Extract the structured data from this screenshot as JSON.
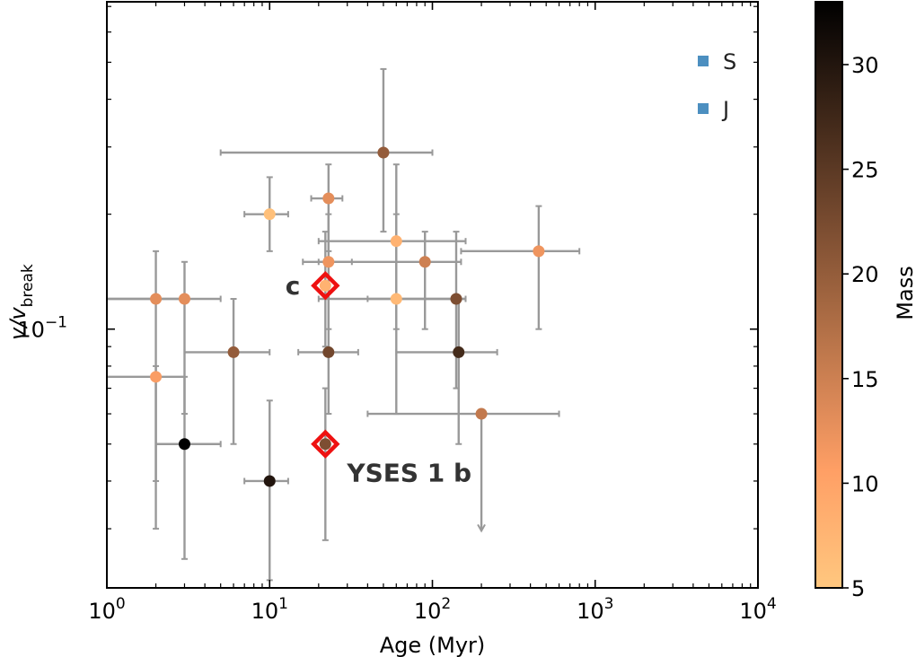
{
  "chart_data": {
    "type": "scatter",
    "xlabel": "Age (Myr)",
    "ylabel_main": "v/v",
    "ylabel_sub": "break",
    "xscale": "log",
    "yscale": "log",
    "xlim": [
      1,
      10000
    ],
    "ylim": [
      0.021,
      0.72
    ],
    "x_ticks": [
      {
        "value": 1,
        "base": "10",
        "exp": "0"
      },
      {
        "value": 10,
        "base": "10",
        "exp": "1"
      },
      {
        "value": 100,
        "base": "10",
        "exp": "2"
      },
      {
        "value": 1000,
        "base": "10",
        "exp": "3"
      },
      {
        "value": 10000,
        "base": "10",
        "exp": "4"
      }
    ],
    "y_ticks": [
      {
        "value": 0.1,
        "base": "10",
        "exp": "−1"
      }
    ],
    "legend": [
      {
        "label": "S",
        "color": "#4c8fc0"
      },
      {
        "label": "J",
        "color": "#4c8fc0"
      }
    ],
    "legend_position": "top-right",
    "colorbar": {
      "label": "Mass",
      "min": 5,
      "max": 33,
      "ticks": [
        5,
        10,
        15,
        20,
        25,
        30
      ],
      "colormap": "copper_r"
    },
    "errorbar_color": "#999999",
    "points": [
      {
        "x": 2,
        "y": 0.12,
        "xerr": [
          1,
          3
        ],
        "yerr": [
          0.04,
          0.16
        ],
        "mass": 13
      },
      {
        "x": 2,
        "y": 0.075,
        "xerr": [
          1,
          3
        ],
        "yerr": [
          0.03,
          0.08
        ],
        "mass": 11
      },
      {
        "x": 3,
        "y": 0.12,
        "xerr": [
          1,
          5
        ],
        "yerr": [
          0.06,
          0.15
        ],
        "mass": 13
      },
      {
        "x": 3,
        "y": 0.05,
        "xerr": [
          2,
          5
        ],
        "yerr": [
          0.025,
          0.075
        ],
        "mass": 33
      },
      {
        "x": 6,
        "y": 0.087,
        "xerr": [
          3,
          10
        ],
        "yerr": [
          0.05,
          0.12
        ],
        "mass": 20
      },
      {
        "x": 10,
        "y": 0.2,
        "xerr": [
          7,
          13
        ],
        "yerr": [
          0.16,
          0.25
        ],
        "mass": 6
      },
      {
        "x": 10,
        "y": 0.04,
        "xerr": [
          7,
          13
        ],
        "yerr": [
          0.022,
          0.065
        ],
        "mass": 30
      },
      {
        "x": 23,
        "y": 0.22,
        "xerr": [
          18,
          28
        ],
        "yerr": [
          0.16,
          0.27
        ],
        "mass": 13
      },
      {
        "x": 23,
        "y": 0.15,
        "xerr": [
          16,
          32
        ],
        "yerr": [
          0.1,
          0.2
        ],
        "mass": 12
      },
      {
        "x": 23,
        "y": 0.087,
        "xerr": [
          15,
          35
        ],
        "yerr": [
          0.06,
          0.12
        ],
        "mass": 23
      },
      {
        "x": 50,
        "y": 0.29,
        "xerr": [
          5,
          100
        ],
        "yerr": [
          0.18,
          0.48
        ],
        "mass": 20
      },
      {
        "x": 60,
        "y": 0.17,
        "xerr": [
          20,
          160
        ],
        "yerr": [
          0.1,
          0.27
        ],
        "mass": 8
      },
      {
        "x": 60,
        "y": 0.12,
        "xerr": [
          20,
          160
        ],
        "yerr": [
          0.06,
          0.2
        ],
        "mass": 7
      },
      {
        "x": 90,
        "y": 0.15,
        "xerr": [
          20,
          150
        ],
        "yerr": [
          0.1,
          0.18
        ],
        "mass": 15
      },
      {
        "x": 140,
        "y": 0.12,
        "xerr": [
          40,
          160
        ],
        "yerr": [
          0.07,
          0.18
        ],
        "mass": 22
      },
      {
        "x": 145,
        "y": 0.087,
        "xerr": [
          60,
          250
        ],
        "yerr": [
          0.05,
          0.12
        ],
        "mass": 27
      },
      {
        "x": 200,
        "y": 0.06,
        "xerr": [
          40,
          600
        ],
        "yerr": [
          0.038,
          0.06
        ],
        "mass": 16,
        "upper_limit": true
      },
      {
        "x": 450,
        "y": 0.16,
        "xerr": [
          150,
          800
        ],
        "yerr": [
          0.1,
          0.21
        ],
        "mass": 12
      }
    ],
    "highlights": [
      {
        "label": "c",
        "x": 22,
        "y": 0.13,
        "yerr": [
          0.09,
          0.18
        ],
        "mass": 8,
        "label_side": "left"
      },
      {
        "label": "YSES 1 b",
        "x": 22,
        "y": 0.05,
        "yerr": [
          0.028,
          0.07
        ],
        "mass": 22,
        "label_side": "below-right"
      }
    ],
    "highlight_color": "#ee1111"
  }
}
